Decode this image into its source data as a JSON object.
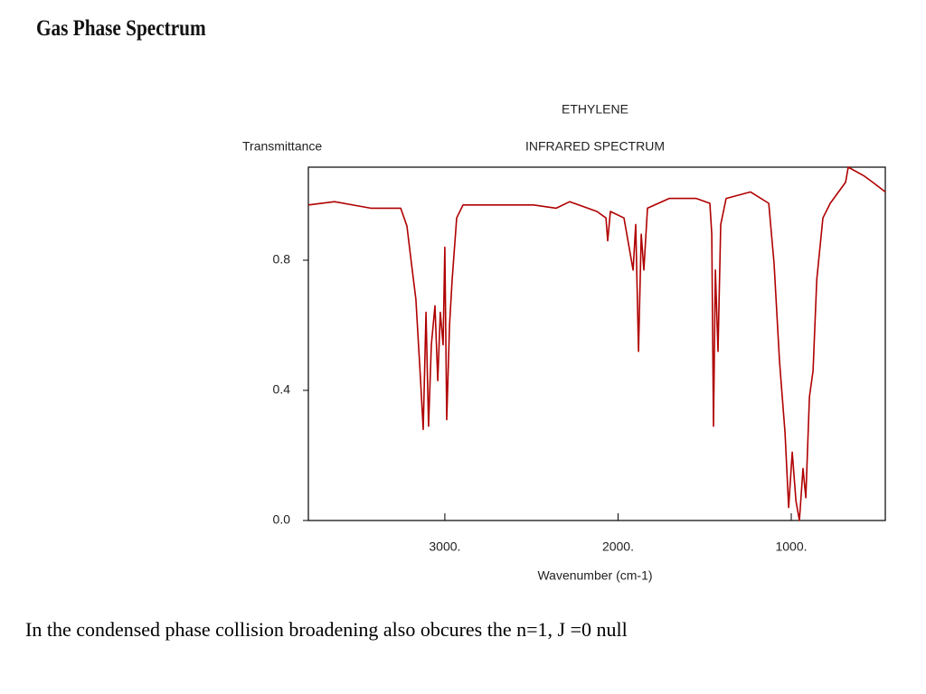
{
  "header": {
    "title": "Gas Phase Spectrum"
  },
  "caption": "In the condensed phase collision broadening also obcures the n=1, J =0 null",
  "chart_data": {
    "type": "line",
    "title": "ETHYLENE",
    "subtitle": "INFRARED SPECTRUM",
    "y_label": "Transmittance",
    "x_label": "Wavenumber (cm-1)",
    "color": "#b00000",
    "x": [
      3788,
      3637,
      3428,
      3255,
      3219,
      3193,
      3167,
      3140,
      3125,
      3109,
      3094,
      3078,
      3057,
      3041,
      3026,
      3010,
      3000,
      2989,
      2973,
      2958,
      2932,
      2895,
      2488,
      2357,
      2279,
      2122,
      2070,
      2060,
      2044,
      1966,
      1913,
      1898,
      1882,
      1866,
      1851,
      1830,
      1705,
      1548,
      1470,
      1459,
      1449,
      1438,
      1423,
      1407,
      1376,
      1235,
      1130,
      1099,
      1068,
      1036,
      1015,
      994,
      973,
      953,
      932,
      916,
      895,
      874,
      853,
      817,
      775,
      686,
      671,
      582,
      530,
      457
    ],
    "values": [
      0.97,
      0.98,
      0.96,
      0.96,
      0.905,
      0.79,
      0.68,
      0.43,
      0.28,
      0.64,
      0.29,
      0.54,
      0.66,
      0.43,
      0.64,
      0.54,
      0.84,
      0.31,
      0.6,
      0.74,
      0.93,
      0.97,
      0.97,
      0.96,
      0.98,
      0.95,
      0.93,
      0.86,
      0.95,
      0.93,
      0.77,
      0.91,
      0.52,
      0.88,
      0.77,
      0.96,
      0.99,
      0.99,
      0.975,
      0.88,
      0.29,
      0.77,
      0.52,
      0.91,
      0.99,
      1.01,
      0.975,
      0.79,
      0.49,
      0.27,
      0.04,
      0.21,
      0.06,
      0.0,
      0.16,
      0.07,
      0.38,
      0.46,
      0.74,
      0.93,
      0.975,
      1.04,
      1.086,
      1.06,
      1.04,
      1.01
    ],
    "xlim": [
      3788,
      457
    ],
    "xticks": [
      {
        "value": 3000,
        "label": "3000."
      },
      {
        "value": 2000,
        "label": "2000."
      },
      {
        "value": 1000,
        "label": "1000."
      }
    ],
    "ylim": [
      0,
      1.086
    ],
    "yticks": [
      {
        "value": 0,
        "label": "0.0"
      },
      0.4,
      0.8
    ]
  }
}
